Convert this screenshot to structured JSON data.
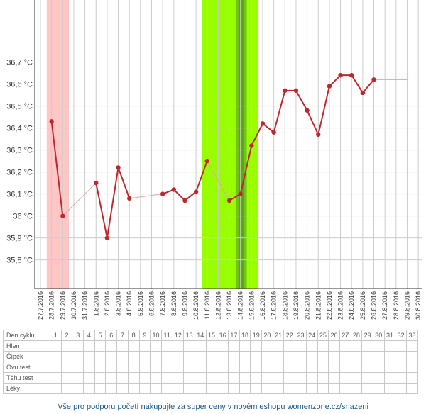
{
  "colors": {
    "line": "#c0272d",
    "faint_line": "#e8a0a0",
    "menstruation": "#ffc6c6",
    "fertile": "#99ff00",
    "fertile_dark": "#55aa10",
    "fertile_mid": "#72c21a",
    "grid": "#cccccc",
    "axis": "#333333"
  },
  "chart_data": {
    "type": "line",
    "xlabel": "",
    "ylabel": "",
    "ylim": [
      35.67,
      36.95
    ],
    "y_ticks": [
      {
        "value": 35.8,
        "label": "35,8 °C"
      },
      {
        "value": 35.9,
        "label": "35,9 °C"
      },
      {
        "value": 36.0,
        "label": "36 °C"
      },
      {
        "value": 36.1,
        "label": "36,1 °C"
      },
      {
        "value": 36.2,
        "label": "36,2 °C"
      },
      {
        "value": 36.3,
        "label": "36,3 °C"
      },
      {
        "value": 36.4,
        "label": "36,4 °C"
      },
      {
        "value": 36.5,
        "label": "36,5 °C"
      },
      {
        "value": 36.6,
        "label": "36,6 °C"
      },
      {
        "value": 36.7,
        "label": "36,7 °C"
      }
    ],
    "categories": [
      "27.7.2016",
      "28.7.2016",
      "29.7.2016",
      "30.7.2016",
      "31.7.2016",
      "1.8.2016",
      "2.8.2016",
      "3.8.2016",
      "4.8.2016",
      "5.8.2016",
      "6.8.2016",
      "7.8.2016",
      "8.8.2016",
      "9.8.2016",
      "10.8.2016",
      "11.8.2016",
      "12.8.2016",
      "13.8.2016",
      "14.8.2016",
      "15.8.2016",
      "16.8.2016",
      "17.8.2016",
      "18.8.2016",
      "19.8.2016",
      "20.8.2016",
      "21.8.2016",
      "22.8.2016",
      "23.8.2016",
      "24.8.2016",
      "25.8.2016",
      "26.8.2016",
      "27.8.2016",
      "28.8.2016",
      "29.8.2016",
      "30.8.2016"
    ],
    "x_tick_labels": [
      "27.7.2016",
      "28.7.2016",
      "29.7.2016",
      "30.7.2016",
      "31.7.2016",
      "1.8.2016",
      "2.8.2016",
      "3.8.2016",
      "4.8.2016",
      "5.8.2016",
      "6.8.2016",
      "7.8.2016",
      "8.8.2016",
      "9.8.2016",
      "10.8.2016",
      "11.8.2016",
      "12.8.2016",
      "13.8.2016",
      "14.8.2016",
      "15.8.2016",
      "16.8.2016",
      "17.8.2016",
      "18.8.2016",
      "19.8.2016",
      "20.8.2016",
      "21.8.2016",
      "22.8.2016",
      "23.8.2016",
      "24.8.2016",
      "25.8.2016",
      "26.8.2016",
      "27.8.2016",
      "28.8.2016",
      "29.8.2016",
      "30.8.2016"
    ],
    "series": [
      {
        "points": [
          {
            "x": "28.7.2016",
            "y": 36.43
          },
          {
            "x": "29.7.2016",
            "y": 36.0
          },
          {
            "x": "1.8.2016",
            "y": 36.15
          },
          {
            "x": "2.8.2016",
            "y": 35.9
          },
          {
            "x": "3.8.2016",
            "y": 36.22
          },
          {
            "x": "4.8.2016",
            "y": 36.08
          },
          {
            "x": "7.8.2016",
            "y": 36.1
          },
          {
            "x": "8.8.2016",
            "y": 36.12
          },
          {
            "x": "9.8.2016",
            "y": 36.07
          },
          {
            "x": "10.8.2016",
            "y": 36.11
          },
          {
            "x": "11.8.2016",
            "y": 36.25
          },
          {
            "x": "13.8.2016",
            "y": 36.07
          },
          {
            "x": "14.8.2016",
            "y": 36.1
          },
          {
            "x": "15.8.2016",
            "y": 36.32
          },
          {
            "x": "16.8.2016",
            "y": 36.42
          },
          {
            "x": "17.8.2016",
            "y": 36.38
          },
          {
            "x": "18.8.2016",
            "y": 36.57
          },
          {
            "x": "19.8.2016",
            "y": 36.57
          },
          {
            "x": "20.8.2016",
            "y": 36.48
          },
          {
            "x": "21.8.2016",
            "y": 36.37
          },
          {
            "x": "22.8.2016",
            "y": 36.59
          },
          {
            "x": "23.8.2016",
            "y": 36.64
          },
          {
            "x": "24.8.2016",
            "y": 36.64
          },
          {
            "x": "25.8.2016",
            "y": 36.56
          },
          {
            "x": "26.8.2016",
            "y": 36.62
          }
        ]
      }
    ],
    "projection": {
      "from": "26.8.2016",
      "to": "29.8.2016",
      "y": 36.62
    },
    "shaded_ranges": [
      {
        "kind": "menstruation",
        "from": "28.7.2016",
        "to": "29.7.2016"
      },
      {
        "kind": "fertile",
        "from": "11.8.2016",
        "to": "15.8.2016"
      },
      {
        "kind": "fertile_mid",
        "from": "14.8.2016",
        "to": "14.8.2016"
      }
    ],
    "grid": true
  },
  "table": {
    "rows": [
      {
        "label": "Den cyklu",
        "cells": [
          "1",
          "2",
          "3",
          "4",
          "5",
          "6",
          "7",
          "8",
          "9",
          "10",
          "11",
          "12",
          "13",
          "14",
          "15",
          "16",
          "17",
          "18",
          "19",
          "20",
          "21",
          "22",
          "23",
          "24",
          "25",
          "26",
          "27",
          "28",
          "29",
          "30",
          "31",
          "32",
          "33"
        ]
      },
      {
        "label": "Hlen",
        "cells": []
      },
      {
        "label": "Čípek",
        "cells": []
      },
      {
        "label": "Ovu test",
        "cells": []
      },
      {
        "label": "Těhu test",
        "cells": []
      },
      {
        "label": "Léky",
        "cells": []
      }
    ]
  },
  "footer": {
    "text": "Vše pro podporu početí nakupujte za super ceny v novém eshopu womenzone.cz/snazeni"
  }
}
